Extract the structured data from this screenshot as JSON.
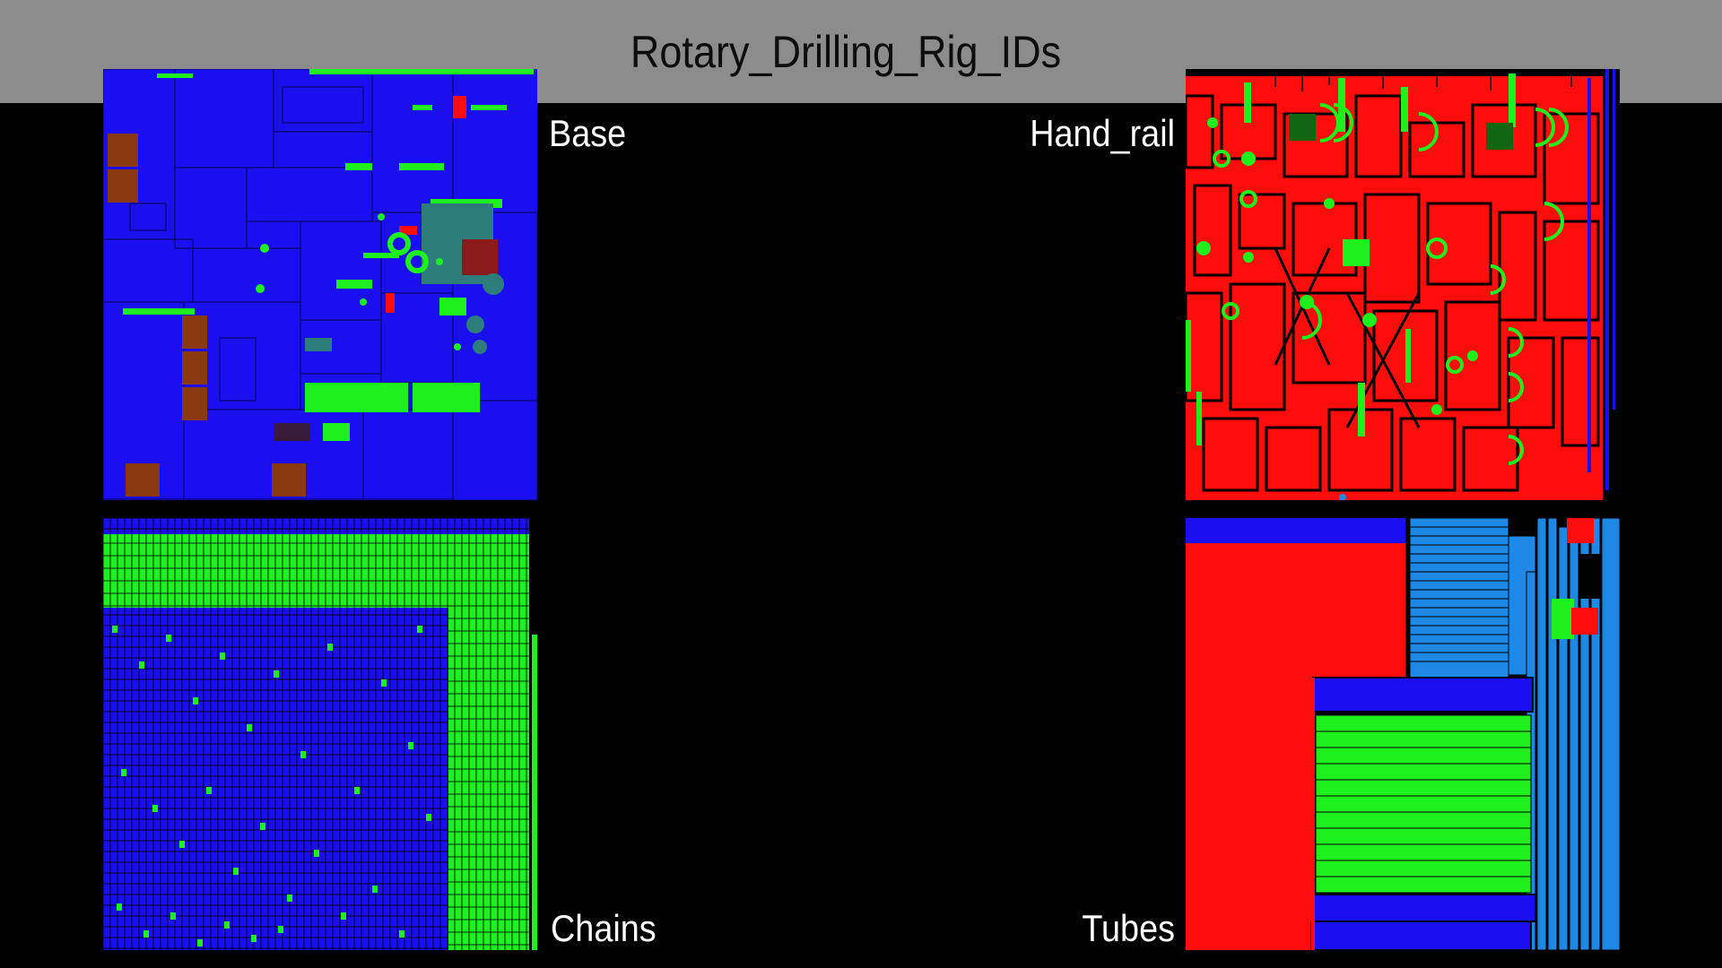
{
  "title": "Rotary_Drilling_Rig_IDs",
  "panels": {
    "base": {
      "label": "Base"
    },
    "hand_rail": {
      "label": "Hand_rail"
    },
    "chains": {
      "label": "Chains"
    },
    "tubes": {
      "label": "Tubes"
    }
  },
  "colors": {
    "background": "#000000",
    "header": "#8c8c8c",
    "id_blue": "#1a0ff0",
    "id_green": "#1ef01e",
    "id_red": "#ff0d0d",
    "id_light_blue": "#1e88e5",
    "id_brown": "#8b3a10",
    "id_teal": "#2e7d7d",
    "id_dark_green": "#116611"
  }
}
